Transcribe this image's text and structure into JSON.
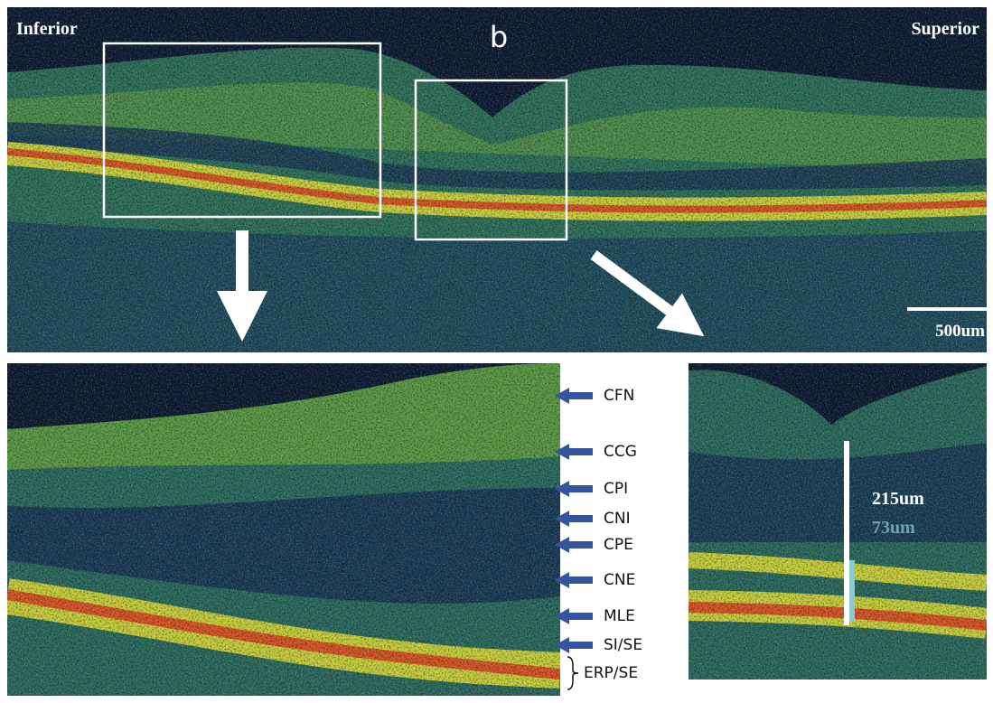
{
  "top_panel": {
    "left_label": "Inferior",
    "right_label": "Superior",
    "panel_letter": "b",
    "scale_bar": "500um"
  },
  "layer_labels": [
    "CFN",
    "CCG",
    "CPI",
    "CNI",
    "CPE",
    "CNE",
    "MLE",
    "SI/SE",
    "ERP/SE"
  ],
  "right_panel": {
    "total_thickness": "215um",
    "inner_thickness": "73um"
  }
}
